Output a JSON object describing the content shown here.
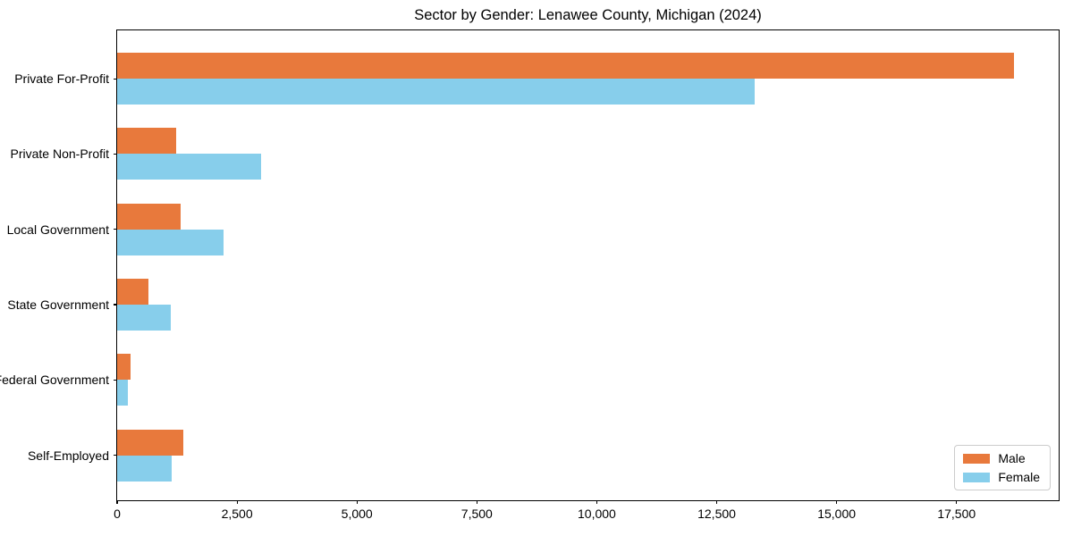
{
  "page": {
    "background_color": "#ffffff",
    "text_color": "#000000",
    "axis_color": "#000000"
  },
  "chart_data": {
    "type": "bar",
    "orientation": "horizontal",
    "title": "Sector by Gender: Lenawee County, Michigan (2024)",
    "xlabel": "",
    "ylabel": "",
    "categories": [
      "Private For-Profit",
      "Private Non-Profit",
      "Local Government",
      "State Government",
      "Federal Government",
      "Self-Employed"
    ],
    "series": [
      {
        "name": "Male",
        "color": "#E8793C",
        "values": [
          18700,
          1230,
          1320,
          660,
          280,
          1380
        ]
      },
      {
        "name": "Female",
        "color": "#87CEEB",
        "values": [
          13300,
          3000,
          2210,
          1110,
          230,
          1140
        ]
      }
    ],
    "xlim": [
      0,
      19630
    ],
    "xticks": [
      0,
      2500,
      5000,
      7500,
      10000,
      12500,
      15000,
      17500
    ],
    "xtick_labels": [
      "0",
      "2,500",
      "5,000",
      "7,500",
      "10,000",
      "12,500",
      "15,000",
      "17,500"
    ],
    "grid": false,
    "legend": {
      "position": "lower right",
      "items": [
        {
          "label": "Male",
          "color": "#E8793C"
        },
        {
          "label": "Female",
          "color": "#87CEEB"
        }
      ]
    }
  }
}
